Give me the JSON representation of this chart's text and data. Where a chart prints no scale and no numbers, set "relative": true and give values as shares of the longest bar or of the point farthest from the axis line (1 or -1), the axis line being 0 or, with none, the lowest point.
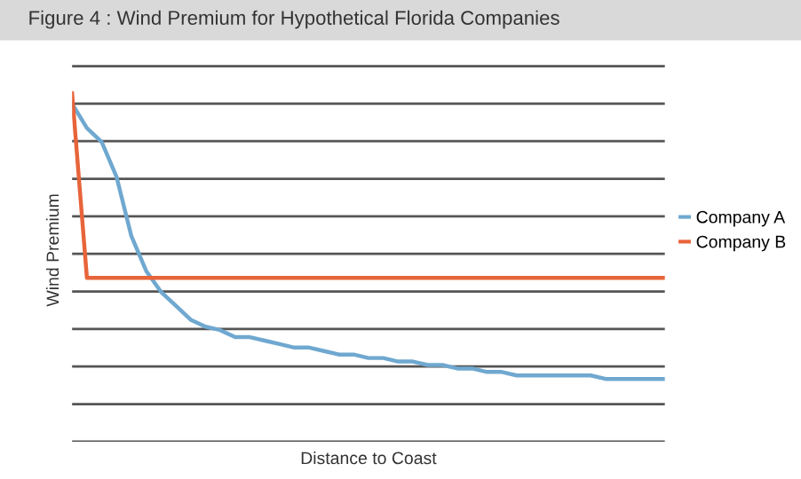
{
  "chart_data": {
    "type": "line",
    "title": "Figure 4 : Wind Premium for Hypothetical Florida Companies",
    "xlabel": "Distance to Coast",
    "ylabel": "Wind Premium",
    "relative": true,
    "grid": true,
    "legend": "right",
    "marker": "none",
    "line_style": "solid",
    "categories": [
      null,
      null,
      null,
      null,
      null,
      null,
      null,
      null,
      null,
      null,
      null,
      null,
      null,
      null,
      null,
      null,
      null,
      null,
      null,
      null,
      null,
      null,
      null,
      null,
      null,
      null,
      null,
      null,
      null,
      null,
      null,
      null,
      null,
      null,
      null,
      null,
      null,
      null,
      null,
      null,
      null
    ],
    "series": [
      {
        "name": "Company A",
        "color": "#6fa8d0",
        "values": [
          0.97,
          0.9,
          0.86,
          0.76,
          0.59,
          0.49,
          0.43,
          0.39,
          0.35,
          0.33,
          0.32,
          0.3,
          0.3,
          0.29,
          0.28,
          0.27,
          0.27,
          0.26,
          0.25,
          0.25,
          0.24,
          0.24,
          0.23,
          0.23,
          0.22,
          0.22,
          0.21,
          0.21,
          0.2,
          0.2,
          0.19,
          0.19,
          0.19,
          0.19,
          0.19,
          0.19,
          0.18,
          0.18,
          0.18,
          0.18,
          0.18
        ]
      },
      {
        "name": "Company B",
        "color": "#e8643a",
        "values": [
          1.0,
          0.47,
          0.47,
          0.47,
          0.47,
          0.47,
          0.47,
          0.47,
          0.47,
          0.47,
          0.47,
          0.47,
          0.47,
          0.47,
          0.47,
          0.47,
          0.47,
          0.47,
          0.47,
          0.47,
          0.47,
          0.47,
          0.47,
          0.47,
          0.47,
          0.47,
          0.47,
          0.47,
          0.47,
          0.47,
          0.47,
          0.47,
          0.47,
          0.47,
          0.47,
          0.47,
          0.47,
          0.47,
          0.47,
          0.47,
          0.47
        ]
      }
    ]
  }
}
